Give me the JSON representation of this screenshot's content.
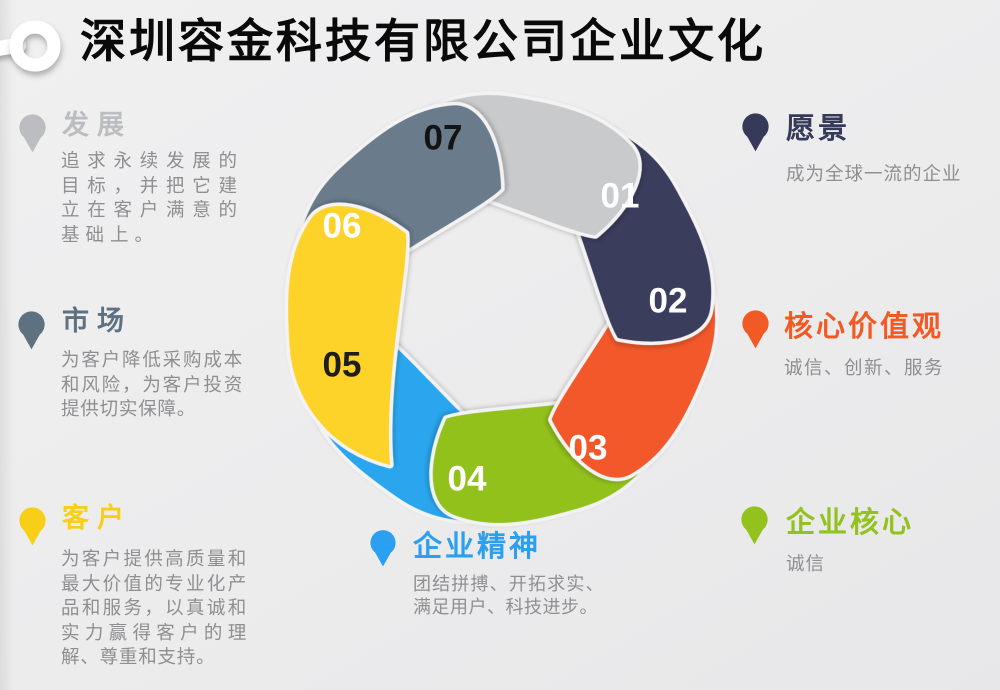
{
  "title": "深圳容金科技有限公司企业文化",
  "background": "#ececed",
  "body_text_color": "#8f8f91",
  "sections": {
    "left": [
      {
        "heading": "发展",
        "body": "追求永续发展的目标，并把它建立在客户满意的基础上。",
        "color": "#bcbdc0"
      },
      {
        "heading": "市场",
        "body": "为客户降低采购成本和风险，为客户投资提供切实保障。",
        "color": "#5e7181"
      },
      {
        "heading": "客户",
        "body": "为客户提供高质量和最大价值的专业化产品和服务，以真诚和实力赢得客户的理解、尊重和支持。",
        "color": "#f6cf16"
      }
    ],
    "right": [
      {
        "heading": "愿景",
        "body": "成为全球一流的企业",
        "color": "#363a59"
      },
      {
        "heading": "核心价值观",
        "body": "诚信、创新、服务",
        "color": "#f15a24"
      },
      {
        "heading": "企业核心",
        "body": "诚信",
        "color": "#93c11e"
      }
    ],
    "bottom": {
      "heading": "企业精神",
      "body": "团结拼搏、开拓求实、满足用户、科技进步。",
      "color": "#2b9ff0"
    }
  },
  "pinwheel": {
    "petals": [
      {
        "label": "01",
        "color": "#3b3e5b",
        "label_color": "#ffffff"
      },
      {
        "label": "02",
        "color": "#f2592a",
        "label_color": "#ffffff"
      },
      {
        "label": "03",
        "color": "#93c11e",
        "label_color": "#ffffff"
      },
      {
        "label": "04",
        "color": "#2aa6ef",
        "label_color": "#ffffff"
      },
      {
        "label": "05",
        "color": "#fdd32b",
        "label_color": "#1d1d1d"
      },
      {
        "label": "06",
        "color": "#6b7c8b",
        "label_color": "#ffffff"
      },
      {
        "label": "07",
        "color": "#c9cacc",
        "label_color": "#141414"
      }
    ]
  }
}
